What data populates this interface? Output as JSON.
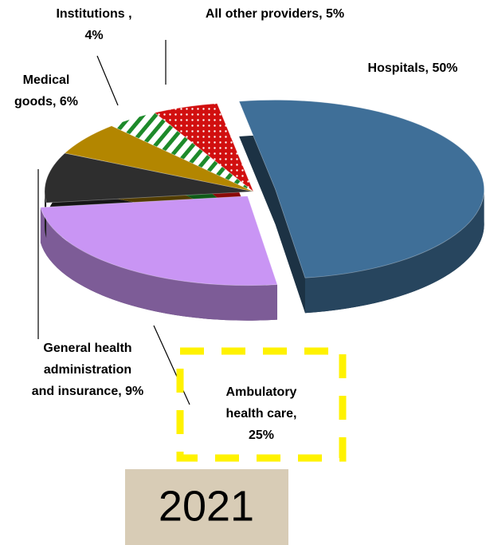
{
  "chart_data": {
    "type": "pie",
    "subtitle": "2021",
    "categories": [
      "Hospitals",
      "Ambulatory health care",
      "General health administration and insurance",
      "Medical goods",
      "Institutions",
      "All other providers"
    ],
    "values": [
      50,
      25,
      9,
      6,
      4,
      5
    ],
    "value_labels": [
      "Hospitals, 50%",
      "Ambulatory\nhealth care,\n25%",
      "General health\nadministration\nand insurance, 9%",
      "Medical\ngoods, 6%",
      "Institutions ,\n4%",
      "All other providers, 5%"
    ],
    "colors": [
      "#3f6f98",
      "#c995f4",
      "#2e2e2e",
      "#b38600",
      "stripes",
      "dots"
    ]
  }
}
